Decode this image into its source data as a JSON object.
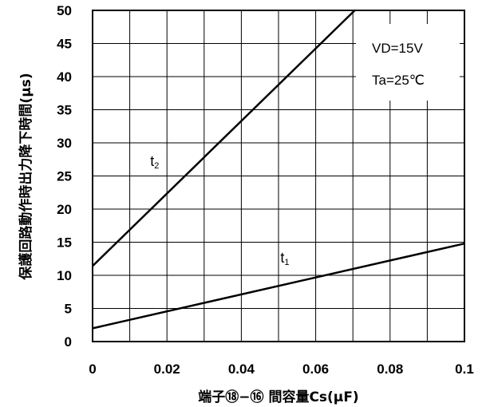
{
  "chart_data": {
    "type": "line",
    "xlabel": "端子⑱−⑯ 間容量Cs(μF)",
    "ylabel": "保護回路動作時出力降下時間(μs)",
    "xlim": [
      0,
      0.1
    ],
    "ylim": [
      0,
      50
    ],
    "x_ticks": [
      "0",
      "0.02",
      "0.04",
      "0.06",
      "0.08",
      "0.1"
    ],
    "y_ticks": [
      "0",
      "5",
      "10",
      "15",
      "20",
      "25",
      "30",
      "35",
      "40",
      "45",
      "50"
    ],
    "grid": true,
    "annotations": [
      "VD=15V",
      "Ta=25℃"
    ],
    "series": [
      {
        "name": "t2",
        "x": [
          0,
          0.0705
        ],
        "y": [
          11.4,
          50
        ]
      },
      {
        "name": "t1",
        "x": [
          0,
          0.1
        ],
        "y": [
          2.0,
          14.8
        ]
      }
    ]
  }
}
